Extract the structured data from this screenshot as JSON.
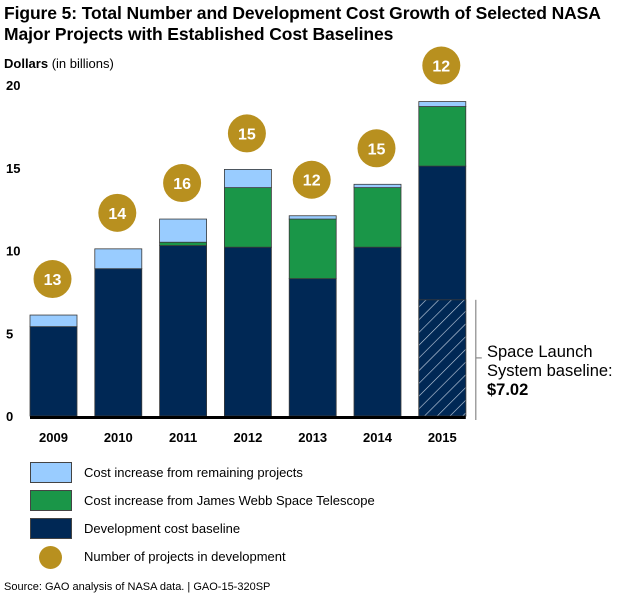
{
  "title": "Figure 5: Total Number and Development Cost Growth of Selected NASA Major Projects with Established Cost Baselines",
  "y_unit_bold": "Dollars",
  "y_unit_rest": " (in billions)",
  "colors": {
    "remaining": "#99ccff",
    "jwst": "#1a9648",
    "baseline": "#002855",
    "count": "#b8901f",
    "hatch": "#c8d4e4",
    "axis": "#000000"
  },
  "legend": [
    {
      "key": "remaining",
      "label": "Cost increase from remaining projects",
      "kind": "swatch"
    },
    {
      "key": "jwst",
      "label": "Cost increase from James Webb Space Telescope",
      "kind": "swatch"
    },
    {
      "key": "baseline",
      "label": "Development cost baseline",
      "kind": "swatch"
    },
    {
      "key": "count",
      "label": "Number of projects in development",
      "kind": "dot"
    }
  ],
  "annotation": {
    "line1": "Space Launch",
    "line2": "System baseline:",
    "amount": "$7.02"
  },
  "source": "Source: GAO analysis of NASA data.  |  GAO-15-320SP",
  "chart_data": {
    "type": "bar",
    "stacked": true,
    "title": "Total Number and Development Cost Growth of Selected NASA Major Projects with Established Cost Baselines",
    "xlabel": "",
    "ylabel": "Dollars (in billions)",
    "ylim": [
      0,
      20
    ],
    "yticks": [
      0,
      5,
      10,
      15,
      20
    ],
    "grid": false,
    "legend_position": "bottom",
    "categories": [
      "2009",
      "2010",
      "2011",
      "2012",
      "2013",
      "2014",
      "2015"
    ],
    "series": [
      {
        "name": "Development cost baseline",
        "key": "baseline",
        "values": [
          5.4,
          8.9,
          10.3,
          10.2,
          8.3,
          10.2,
          15.1
        ]
      },
      {
        "name": "Cost increase from James Webb Space Telescope",
        "key": "jwst",
        "values": [
          0,
          0,
          0.2,
          3.6,
          3.6,
          3.6,
          3.6
        ]
      },
      {
        "name": "Cost increase from remaining projects",
        "key": "remaining",
        "values": [
          0.7,
          1.2,
          1.4,
          1.1,
          0.2,
          0.2,
          0.3
        ]
      }
    ],
    "project_counts": [
      13,
      14,
      16,
      15,
      12,
      15,
      12
    ],
    "hatched_subset": {
      "category": "2015",
      "label": "Space Launch System baseline",
      "value": 7.02
    }
  }
}
